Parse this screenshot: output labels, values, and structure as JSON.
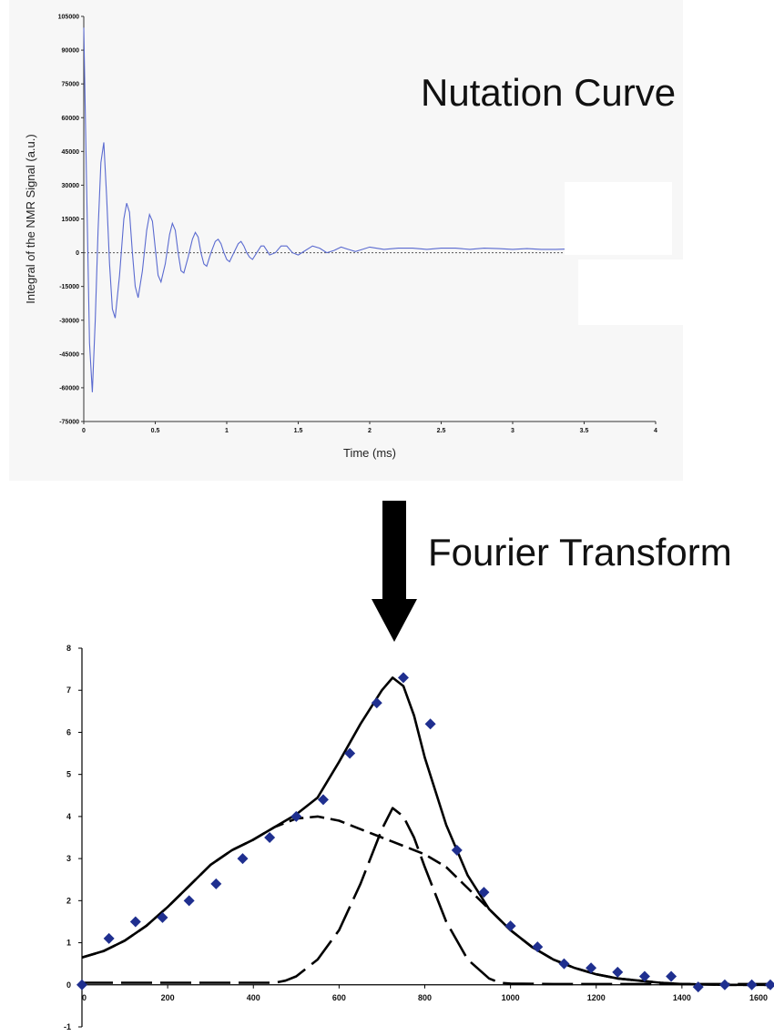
{
  "labels": {
    "top_caption": "Nutation Curve",
    "arrow_caption": "Fourier Transform"
  },
  "colors": {
    "top_curve": "#5a6ad0",
    "marker": "#1f2f8f",
    "line": "#000000",
    "panel_bg": "#f7f7f7"
  },
  "chart_data": [
    {
      "type": "line",
      "title": "",
      "xlabel": "Time (ms)",
      "ylabel": "Integral of the NMR Signal (a.u.)",
      "xlim": [
        0,
        4
      ],
      "ylim": [
        -75000,
        105000
      ],
      "x_ticks": [
        "0",
        "0.5",
        "1",
        "1.5",
        "2",
        "2.5",
        "3",
        "3.5",
        "4"
      ],
      "y_ticks": [
        "105000",
        "90000",
        "75000",
        "60000",
        "45000",
        "30000",
        "15000",
        "0",
        "-15000",
        "-30000",
        "-45000",
        "-60000",
        "-75000"
      ],
      "zero_line": "dotted",
      "grid": false,
      "series": [
        {
          "x": [
            0,
            0.02,
            0.04,
            0.06,
            0.08,
            0.1,
            0.12,
            0.14,
            0.16,
            0.18,
            0.2,
            0.22,
            0.25,
            0.28,
            0.3,
            0.32,
            0.34,
            0.36,
            0.38,
            0.41,
            0.44,
            0.46,
            0.48,
            0.5,
            0.52,
            0.54,
            0.57,
            0.6,
            0.62,
            0.64,
            0.66,
            0.68,
            0.7,
            0.73,
            0.76,
            0.78,
            0.8,
            0.82,
            0.84,
            0.86,
            0.89,
            0.92,
            0.94,
            0.96,
            0.98,
            1.0,
            1.02,
            1.05,
            1.08,
            1.1,
            1.12,
            1.14,
            1.16,
            1.18,
            1.21,
            1.24,
            1.26,
            1.28,
            1.3,
            1.34,
            1.38,
            1.42,
            1.46,
            1.5,
            1.55,
            1.6,
            1.65,
            1.7,
            1.75,
            1.8,
            1.85,
            1.9,
            1.95,
            2.0,
            2.1,
            2.2,
            2.3,
            2.4,
            2.5,
            2.6,
            2.7,
            2.8,
            2.9,
            3.0,
            3.1,
            3.2,
            3.3,
            3.4,
            3.5,
            3.6,
            3.7,
            3.8,
            3.9,
            4.0
          ],
          "y": [
            100000,
            30000,
            -40000,
            -62000,
            -30000,
            10000,
            40000,
            49000,
            25000,
            -5000,
            -25000,
            -29000,
            -10000,
            15000,
            22000,
            18000,
            0,
            -15000,
            -20000,
            -8000,
            10000,
            17000,
            14000,
            2000,
            -10000,
            -13000,
            -5000,
            8000,
            13000,
            10000,
            0,
            -8000,
            -9000,
            -2000,
            6000,
            9000,
            7000,
            0,
            -5000,
            -6000,
            0,
            5000,
            6000,
            4000,
            0,
            -3000,
            -4000,
            0,
            4000,
            5000,
            3000,
            0,
            -2000,
            -3000,
            0,
            3000,
            3000,
            1000,
            -1000,
            0,
            3000,
            3000,
            0,
            -1000,
            1000,
            3000,
            2000,
            0,
            1000,
            2500,
            1500,
            500,
            1500,
            2500,
            1500,
            2000,
            2000,
            1500,
            2000,
            2000,
            1500,
            2000,
            1800,
            1500,
            1800,
            1500,
            1500,
            1700,
            1500,
            1500,
            1600,
            1500,
            1500,
            1500
          ]
        }
      ]
    },
    {
      "type": "line",
      "title": "",
      "xlabel": "",
      "ylabel": "",
      "xlim": [
        0,
        1600
      ],
      "ylim": [
        -1,
        8
      ],
      "x_ticks": [
        "0",
        "200",
        "400",
        "600",
        "800",
        "1000",
        "1200",
        "1400",
        "1600"
      ],
      "y_ticks": [
        "8",
        "7",
        "6",
        "5",
        "4",
        "3",
        "2",
        "1",
        "0",
        "-1"
      ],
      "grid": false,
      "series": [
        {
          "style": "markers",
          "x": [
            0,
            63,
            125,
            188,
            250,
            313,
            375,
            438,
            500,
            563,
            625,
            688,
            750,
            813,
            875,
            938,
            1000,
            1063,
            1125,
            1188,
            1250,
            1313,
            1375,
            1438,
            1500,
            1563,
            1625
          ],
          "y": [
            0,
            1.1,
            1.5,
            1.6,
            2.0,
            2.4,
            3.0,
            3.5,
            4.0,
            4.4,
            5.5,
            6.7,
            7.3,
            6.2,
            3.2,
            2.2,
            1.4,
            0.9,
            0.5,
            0.4,
            0.3,
            0.2,
            0.2,
            -0.05,
            0,
            0,
            0
          ]
        },
        {
          "style": "solid",
          "x": [
            0,
            50,
            100,
            150,
            200,
            250,
            300,
            350,
            400,
            450,
            500,
            550,
            600,
            650,
            700,
            725,
            750,
            775,
            800,
            850,
            900,
            950,
            1000,
            1050,
            1100,
            1150,
            1200,
            1250,
            1300,
            1350,
            1400,
            1450,
            1500,
            1550,
            1600
          ],
          "y": [
            0.65,
            0.8,
            1.05,
            1.4,
            1.85,
            2.35,
            2.85,
            3.2,
            3.45,
            3.75,
            4.05,
            4.45,
            5.3,
            6.2,
            7.0,
            7.3,
            7.1,
            6.4,
            5.4,
            3.8,
            2.6,
            1.8,
            1.3,
            0.9,
            0.6,
            0.4,
            0.25,
            0.15,
            0.1,
            0.05,
            0.02,
            0.01,
            0,
            0,
            0
          ]
        },
        {
          "style": "dashed",
          "x": [
            0,
            50,
            100,
            150,
            200,
            250,
            300,
            350,
            400,
            450,
            500,
            550,
            600,
            650,
            700,
            725,
            750,
            800,
            850,
            900,
            950,
            1000,
            1050,
            1100,
            1150,
            1200,
            1250,
            1300,
            1350,
            1400,
            1500,
            1600
          ],
          "y": [
            0.65,
            0.8,
            1.05,
            1.4,
            1.85,
            2.35,
            2.85,
            3.2,
            3.45,
            3.75,
            3.95,
            4.0,
            3.9,
            3.7,
            3.5,
            3.4,
            3.3,
            3.1,
            2.8,
            2.3,
            1.8,
            1.3,
            0.9,
            0.6,
            0.4,
            0.25,
            0.15,
            0.1,
            0.05,
            0.02,
            0,
            0
          ]
        },
        {
          "style": "long-dash",
          "x": [
            0,
            100,
            200,
            300,
            400,
            450,
            475,
            500,
            550,
            600,
            650,
            700,
            725,
            750,
            775,
            800,
            850,
            900,
            950,
            975,
            1000,
            1100,
            1200,
            1300,
            1400,
            1500,
            1600
          ],
          "y": [
            0.05,
            0.05,
            0.05,
            0.05,
            0.05,
            0.05,
            0.1,
            0.2,
            0.6,
            1.3,
            2.4,
            3.7,
            4.2,
            4.0,
            3.5,
            2.8,
            1.5,
            0.6,
            0.15,
            0.05,
            0.03,
            0.02,
            0.02,
            0.02,
            0.02,
            0.02,
            0.02
          ]
        }
      ]
    }
  ]
}
